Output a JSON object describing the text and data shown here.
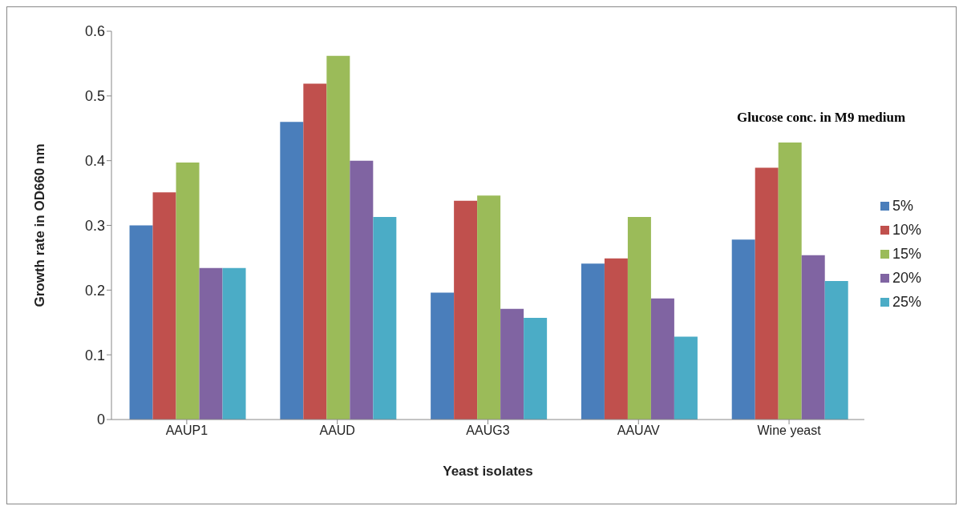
{
  "chart_data": {
    "type": "bar",
    "xlabel": "Yeast isolates",
    "ylabel": "Growth rate in OD660 nm",
    "legend_title": "Glucose conc. in M9 medium",
    "categories": [
      "AAUP1",
      "AAUD",
      "AAUG3",
      "AAUAV",
      "Wine yeast"
    ],
    "series": [
      {
        "name": "5%",
        "color": "#4a7ebb",
        "values": [
          0.3,
          0.46,
          0.196,
          0.241,
          0.278
        ]
      },
      {
        "name": "10%",
        "color": "#c0504d",
        "values": [
          0.351,
          0.519,
          0.338,
          0.249,
          0.389
        ]
      },
      {
        "name": "15%",
        "color": "#9bbb59",
        "values": [
          0.397,
          0.562,
          0.346,
          0.313,
          0.428
        ]
      },
      {
        "name": "20%",
        "color": "#8064a2",
        "values": [
          0.234,
          0.4,
          0.171,
          0.187,
          0.254
        ]
      },
      {
        "name": "25%",
        "color": "#4bacc6",
        "values": [
          0.234,
          0.313,
          0.157,
          0.128,
          0.214
        ]
      }
    ],
    "ylim": [
      0,
      0.6
    ],
    "yticks": [
      0,
      0.1,
      0.2,
      0.3,
      0.4,
      0.5,
      0.6
    ],
    "grid": false,
    "legend": "right"
  }
}
